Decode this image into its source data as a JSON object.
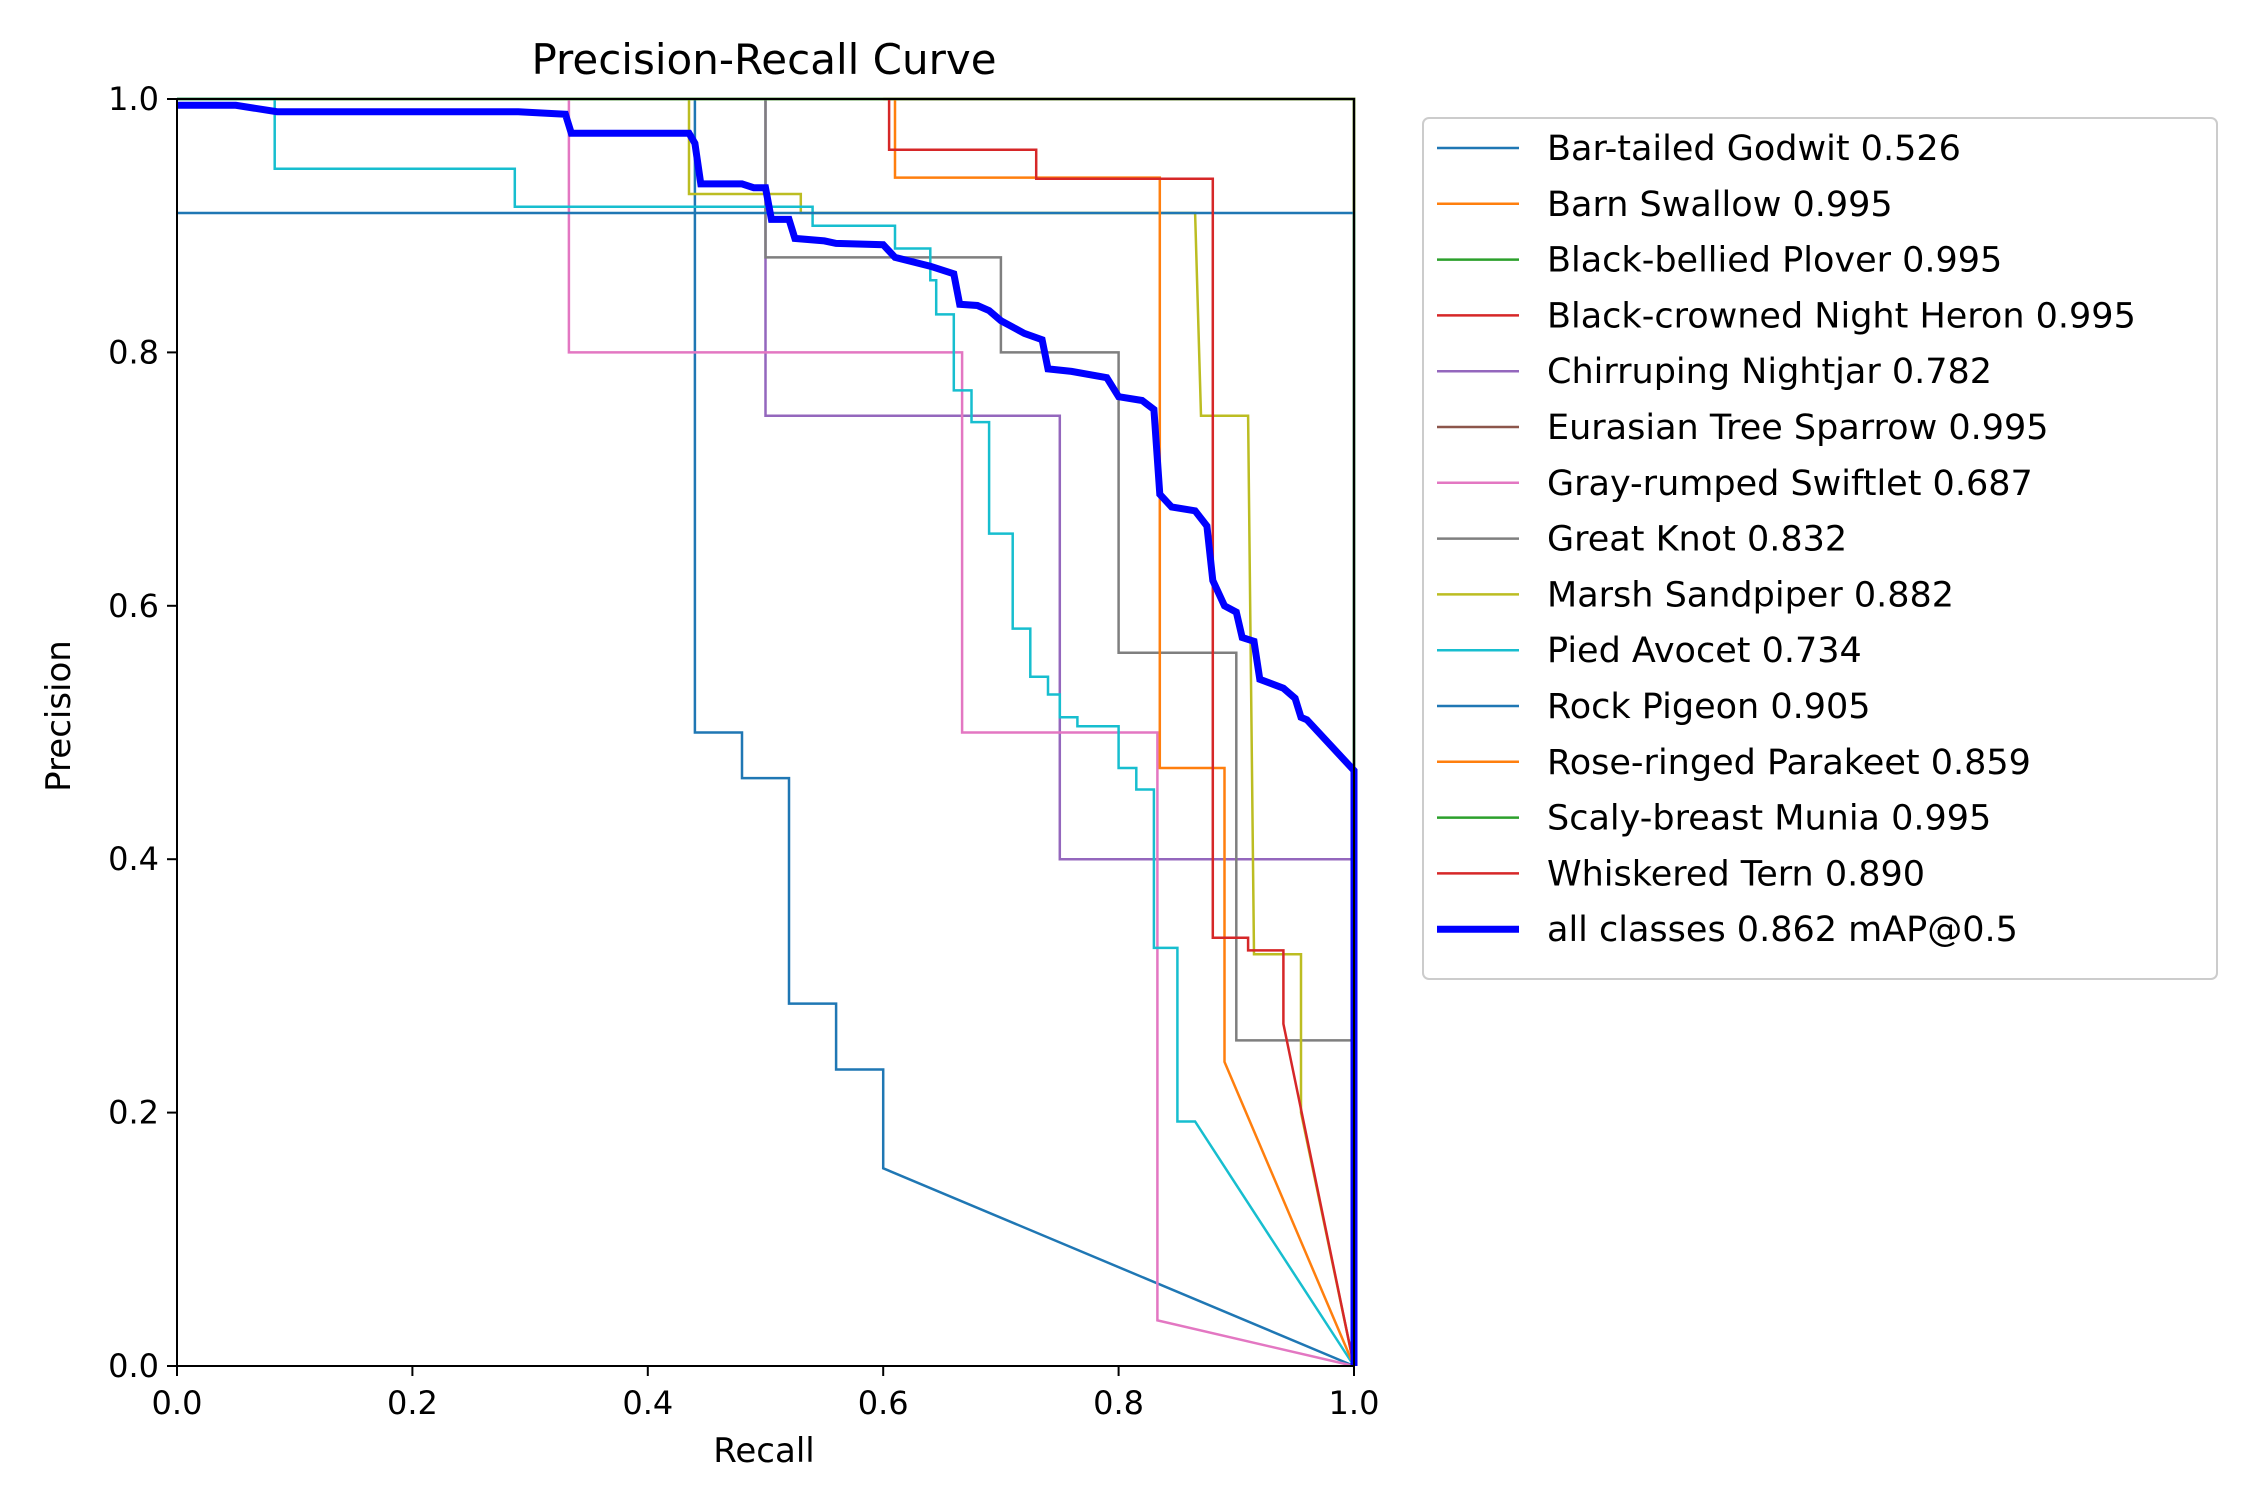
{
  "chart_data": {
    "type": "line",
    "title": "Precision-Recall Curve",
    "xlabel": "Recall",
    "ylabel": "Precision",
    "xlim": [
      0.0,
      1.0
    ],
    "ylim": [
      0.0,
      1.0
    ],
    "xticks": [
      "0.0",
      "0.2",
      "0.4",
      "0.6",
      "0.8",
      "1.0"
    ],
    "yticks": [
      "0.0",
      "0.2",
      "0.4",
      "0.6",
      "0.8",
      "1.0"
    ],
    "grid": false,
    "legend_position": "outside-right-top",
    "series": [
      {
        "name": "Bar-tailed Godwit 0.526",
        "color": "#1f77b4",
        "width": 2.5,
        "points": [
          [
            0.44,
            1.0
          ],
          [
            0.44,
            0.5
          ],
          [
            0.48,
            0.5
          ],
          [
            0.48,
            0.464
          ],
          [
            0.52,
            0.464
          ],
          [
            0.52,
            0.286
          ],
          [
            0.56,
            0.286
          ],
          [
            0.56,
            0.234
          ],
          [
            0.6,
            0.234
          ],
          [
            0.6,
            0.156
          ],
          [
            1.0,
            0.0
          ]
        ]
      },
      {
        "name": "Barn Swallow 0.995",
        "color": "#ff7f0e",
        "width": 2.5,
        "points": [
          [
            0.6,
            1.0
          ],
          [
            0.6,
            1.0
          ],
          [
            1.0,
            1.0
          ],
          [
            1.0,
            0.0
          ]
        ]
      },
      {
        "name": "Black-bellied Plover 0.995",
        "color": "#2ca02c",
        "width": 2.5,
        "points": [
          [
            0.0,
            1.0
          ],
          [
            1.0,
            1.0
          ],
          [
            1.0,
            0.0
          ]
        ]
      },
      {
        "name": "Black-crowned Night Heron 0.995",
        "color": "#d62728",
        "width": 2.5,
        "points": [
          [
            0.6,
            1.0
          ],
          [
            1.0,
            1.0
          ],
          [
            1.0,
            0.0
          ]
        ]
      },
      {
        "name": "Chirruping Nightjar 0.782",
        "color": "#9467bd",
        "width": 2.5,
        "points": [
          [
            0.5,
            1.0
          ],
          [
            0.5,
            0.75
          ],
          [
            0.75,
            0.75
          ],
          [
            0.75,
            0.4
          ],
          [
            1.0,
            0.4
          ],
          [
            1.0,
            0.0
          ]
        ]
      },
      {
        "name": "Eurasian Tree Sparrow 0.995",
        "color": "#8c564b",
        "width": 2.5,
        "points": [
          [
            0.0,
            1.0
          ],
          [
            1.0,
            1.0
          ],
          [
            1.0,
            0.0
          ]
        ]
      },
      {
        "name": "Gray-rumped Swiftlet 0.687",
        "color": "#e377c2",
        "width": 2.5,
        "points": [
          [
            0.333,
            1.0
          ],
          [
            0.333,
            0.8
          ],
          [
            0.667,
            0.8
          ],
          [
            0.667,
            0.5
          ],
          [
            0.833,
            0.5
          ],
          [
            0.833,
            0.036
          ],
          [
            1.0,
            0.0
          ]
        ]
      },
      {
        "name": "Great Knot 0.832",
        "color": "#7f7f7f",
        "width": 2.5,
        "points": [
          [
            0.5,
            1.0
          ],
          [
            0.5,
            0.875
          ],
          [
            0.7,
            0.875
          ],
          [
            0.7,
            0.8
          ],
          [
            0.8,
            0.8
          ],
          [
            0.8,
            0.563
          ],
          [
            0.9,
            0.563
          ],
          [
            0.9,
            0.257
          ],
          [
            1.0,
            0.257
          ],
          [
            1.0,
            0.0
          ]
        ]
      },
      {
        "name": "Marsh Sandpiper 0.882",
        "color": "#bcbd22",
        "width": 2.5,
        "points": [
          [
            0.435,
            1.0
          ],
          [
            0.435,
            0.925
          ],
          [
            0.53,
            0.925
          ],
          [
            0.53,
            0.91
          ],
          [
            0.865,
            0.91
          ],
          [
            0.87,
            0.75
          ],
          [
            0.91,
            0.75
          ],
          [
            0.915,
            0.325
          ],
          [
            0.955,
            0.325
          ],
          [
            0.955,
            0.2
          ],
          [
            1.0,
            0.0
          ]
        ]
      },
      {
        "name": "Pied Avocet 0.734",
        "color": "#17becf",
        "width": 2.5,
        "points": [
          [
            0.0,
            1.0
          ],
          [
            0.083,
            1.0
          ],
          [
            0.083,
            0.945
          ],
          [
            0.287,
            0.945
          ],
          [
            0.287,
            0.915
          ],
          [
            0.54,
            0.915
          ],
          [
            0.54,
            0.9
          ],
          [
            0.61,
            0.9
          ],
          [
            0.61,
            0.882
          ],
          [
            0.64,
            0.882
          ],
          [
            0.64,
            0.857
          ],
          [
            0.645,
            0.857
          ],
          [
            0.645,
            0.83
          ],
          [
            0.66,
            0.83
          ],
          [
            0.66,
            0.77
          ],
          [
            0.675,
            0.77
          ],
          [
            0.675,
            0.745
          ],
          [
            0.69,
            0.745
          ],
          [
            0.69,
            0.657
          ],
          [
            0.71,
            0.657
          ],
          [
            0.71,
            0.582
          ],
          [
            0.725,
            0.582
          ],
          [
            0.725,
            0.544
          ],
          [
            0.74,
            0.544
          ],
          [
            0.74,
            0.53
          ],
          [
            0.75,
            0.53
          ],
          [
            0.75,
            0.512
          ],
          [
            0.765,
            0.512
          ],
          [
            0.765,
            0.505
          ],
          [
            0.8,
            0.505
          ],
          [
            0.8,
            0.472
          ],
          [
            0.815,
            0.472
          ],
          [
            0.815,
            0.455
          ],
          [
            0.83,
            0.455
          ],
          [
            0.83,
            0.33
          ],
          [
            0.85,
            0.33
          ],
          [
            0.85,
            0.193
          ],
          [
            0.865,
            0.193
          ],
          [
            1.0,
            0.0
          ]
        ]
      },
      {
        "name": "Rock Pigeon 0.905",
        "color": "#1f77b4",
        "width": 2.5,
        "points": [
          [
            0.0,
            0.91
          ],
          [
            1.0,
            0.91
          ],
          [
            1.0,
            0.0
          ]
        ]
      },
      {
        "name": "Rose-ringed Parakeet 0.859",
        "color": "#ff7f0e",
        "width": 2.5,
        "points": [
          [
            0.61,
            1.0
          ],
          [
            0.61,
            0.938
          ],
          [
            0.835,
            0.938
          ],
          [
            0.835,
            0.472
          ],
          [
            0.89,
            0.472
          ],
          [
            0.89,
            0.24
          ],
          [
            1.0,
            0.0
          ]
        ]
      },
      {
        "name": "Scaly-breast Munia 0.995",
        "color": "#2ca02c",
        "width": 2.5,
        "points": [
          [
            0.0,
            1.0
          ],
          [
            1.0,
            1.0
          ],
          [
            1.0,
            0.0
          ]
        ]
      },
      {
        "name": "Whiskered Tern 0.890",
        "color": "#d62728",
        "width": 2.5,
        "points": [
          [
            0.605,
            1.0
          ],
          [
            0.605,
            0.96
          ],
          [
            0.73,
            0.96
          ],
          [
            0.73,
            0.937
          ],
          [
            0.88,
            0.937
          ],
          [
            0.88,
            0.338
          ],
          [
            0.91,
            0.338
          ],
          [
            0.91,
            0.328
          ],
          [
            0.94,
            0.328
          ],
          [
            0.94,
            0.27
          ],
          [
            1.0,
            0.0
          ]
        ]
      },
      {
        "name": "all classes 0.862 mAP@0.5",
        "color": "#0000ff",
        "width": 7,
        "points": [
          [
            0.0,
            0.995
          ],
          [
            0.05,
            0.995
          ],
          [
            0.085,
            0.99
          ],
          [
            0.29,
            0.99
          ],
          [
            0.33,
            0.988
          ],
          [
            0.335,
            0.973
          ],
          [
            0.435,
            0.973
          ],
          [
            0.44,
            0.965
          ],
          [
            0.445,
            0.933
          ],
          [
            0.48,
            0.933
          ],
          [
            0.49,
            0.93
          ],
          [
            0.5,
            0.93
          ],
          [
            0.505,
            0.905
          ],
          [
            0.52,
            0.905
          ],
          [
            0.525,
            0.89
          ],
          [
            0.55,
            0.888
          ],
          [
            0.56,
            0.886
          ],
          [
            0.6,
            0.885
          ],
          [
            0.61,
            0.875
          ],
          [
            0.64,
            0.868
          ],
          [
            0.66,
            0.862
          ],
          [
            0.665,
            0.838
          ],
          [
            0.68,
            0.837
          ],
          [
            0.69,
            0.833
          ],
          [
            0.7,
            0.825
          ],
          [
            0.71,
            0.82
          ],
          [
            0.72,
            0.815
          ],
          [
            0.735,
            0.81
          ],
          [
            0.74,
            0.787
          ],
          [
            0.76,
            0.785
          ],
          [
            0.79,
            0.78
          ],
          [
            0.8,
            0.765
          ],
          [
            0.82,
            0.762
          ],
          [
            0.83,
            0.755
          ],
          [
            0.835,
            0.688
          ],
          [
            0.845,
            0.678
          ],
          [
            0.865,
            0.675
          ],
          [
            0.875,
            0.663
          ],
          [
            0.88,
            0.62
          ],
          [
            0.89,
            0.6
          ],
          [
            0.9,
            0.595
          ],
          [
            0.905,
            0.575
          ],
          [
            0.915,
            0.572
          ],
          [
            0.92,
            0.542
          ],
          [
            0.94,
            0.535
          ],
          [
            0.95,
            0.527
          ],
          [
            0.955,
            0.512
          ],
          [
            0.96,
            0.51
          ],
          [
            1.0,
            0.47
          ],
          [
            1.0,
            0.0
          ]
        ]
      }
    ]
  }
}
